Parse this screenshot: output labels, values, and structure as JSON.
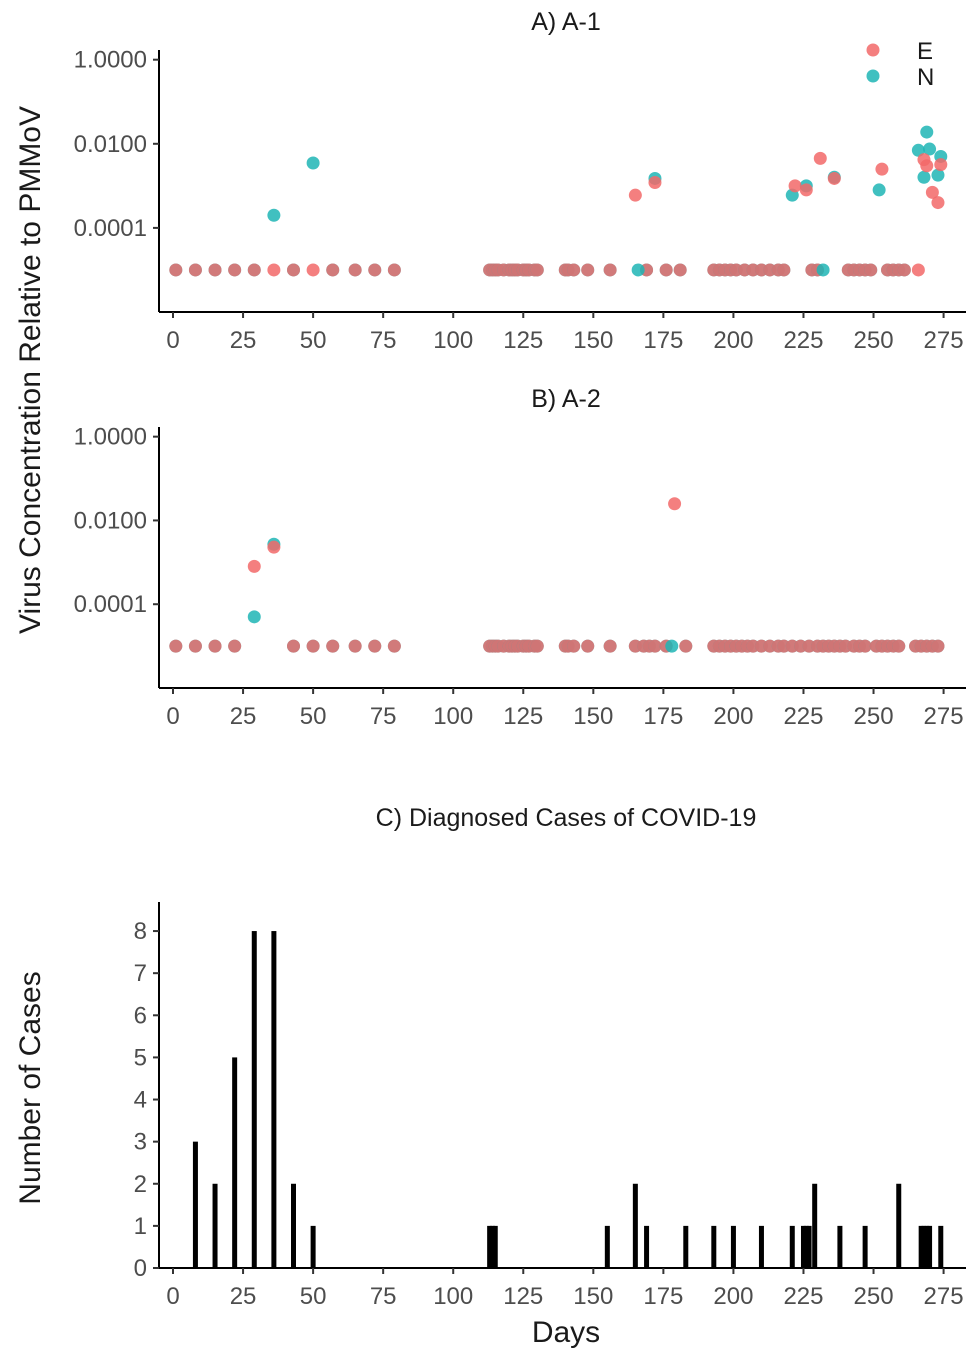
{
  "chart_data": [
    {
      "id": "panel-a",
      "type": "scatter",
      "title": "A) A-1",
      "x_ticks": [
        0,
        25,
        50,
        75,
        100,
        125,
        150,
        175,
        200,
        225,
        250,
        275
      ],
      "y_ticks": [
        "0.0001",
        "0.0100",
        "1.0000"
      ],
      "y_tick_values": [
        0.0001,
        0.01,
        1
      ],
      "y_scale": "log",
      "xlim": [
        -5,
        283
      ],
      "ylim": [
        1e-06,
        1.7
      ],
      "legend": {
        "position": "top-right",
        "entries": [
          "E",
          "N"
        ]
      },
      "series": [
        {
          "name": "N",
          "color": "#1fb5b5",
          "points": [
            [
              36,
              0.0002
            ],
            [
              50,
              0.0035
            ],
            [
              166,
              1e-05
            ],
            [
              172,
              0.0015
            ],
            [
              221,
              0.0006
            ],
            [
              226,
              0.001
            ],
            [
              232,
              1e-05
            ],
            [
              236,
              0.0016
            ],
            [
              252,
              0.0008
            ],
            [
              266,
              0.007
            ],
            [
              268,
              0.0016
            ],
            [
              269,
              0.019
            ],
            [
              270,
              0.0075
            ],
            [
              273,
              0.0018
            ],
            [
              274,
              0.005
            ]
          ]
        },
        {
          "name": "E",
          "color": "#f26868",
          "points": [
            [
              36,
              1e-05
            ],
            [
              50,
              1e-05
            ],
            [
              165,
              0.0006
            ],
            [
              172,
              0.0012
            ],
            [
              222,
              0.001
            ],
            [
              226,
              0.0008
            ],
            [
              231,
              0.0045
            ],
            [
              236,
              0.0015
            ],
            [
              253,
              0.0025
            ],
            [
              268,
              0.0042
            ],
            [
              269,
              0.003
            ],
            [
              271,
              0.0007
            ],
            [
              273,
              0.0004
            ],
            [
              274,
              0.0032
            ],
            [
              266,
              1e-05
            ]
          ]
        }
      ],
      "nondetect_days": [
        1,
        8,
        15,
        22,
        29,
        43,
        57,
        65,
        72,
        79,
        113,
        114,
        115,
        116,
        118,
        120,
        121,
        122,
        123,
        125,
        126,
        127,
        129,
        130,
        140,
        141,
        143,
        148,
        156,
        169,
        176,
        181,
        193,
        195,
        197,
        199,
        201,
        204,
        207,
        210,
        213,
        216,
        218,
        228,
        230,
        241,
        243,
        245,
        247,
        249,
        255,
        257,
        259,
        261
      ]
    },
    {
      "id": "panel-b",
      "type": "scatter",
      "title": "B) A-2",
      "x_ticks": [
        0,
        25,
        50,
        75,
        100,
        125,
        150,
        175,
        200,
        225,
        250,
        275
      ],
      "y_ticks": [
        "0.0001",
        "0.0100",
        "1.0000"
      ],
      "y_tick_values": [
        0.0001,
        0.01,
        1
      ],
      "y_scale": "log",
      "xlim": [
        -5,
        283
      ],
      "ylim": [
        1e-06,
        1.7
      ],
      "series": [
        {
          "name": "N",
          "color": "#1fb5b5",
          "points": [
            [
              29,
              5e-05
            ],
            [
              36,
              0.0027
            ],
            [
              178,
              1e-05
            ]
          ]
        },
        {
          "name": "E",
          "color": "#f26868",
          "points": [
            [
              29,
              0.0008
            ],
            [
              36,
              0.0023
            ],
            [
              179,
              0.025
            ]
          ]
        }
      ],
      "nondetect_days": [
        1,
        8,
        15,
        22,
        43,
        50,
        57,
        65,
        72,
        79,
        113,
        114,
        115,
        116,
        118,
        120,
        121,
        122,
        123,
        125,
        126,
        127,
        129,
        130,
        140,
        141,
        143,
        148,
        156,
        165,
        168,
        170,
        172,
        176,
        183,
        193,
        195,
        197,
        199,
        201,
        203,
        205,
        207,
        210,
        213,
        216,
        218,
        221,
        224,
        227,
        230,
        232,
        234,
        236,
        238,
        240,
        243,
        245,
        247,
        251,
        253,
        255,
        257,
        259,
        265,
        267,
        269,
        271,
        273
      ]
    },
    {
      "id": "panel-c",
      "type": "bar",
      "title": "C) Diagnosed Cases of COVID-19",
      "xlabel": "Days",
      "ylabel": "Number of Cases",
      "x_ticks": [
        0,
        25,
        50,
        75,
        100,
        125,
        150,
        175,
        200,
        225,
        250,
        275
      ],
      "y_ticks": [
        0,
        1,
        2,
        3,
        4,
        5,
        6,
        7,
        8
      ],
      "xlim": [
        -5,
        283
      ],
      "ylim": [
        0,
        8.5
      ],
      "color": "#000000",
      "x": [
        8,
        15,
        22,
        29,
        36,
        43,
        50,
        113,
        114,
        115,
        155,
        165,
        169,
        183,
        193,
        200,
        210,
        221,
        225,
        226,
        227,
        229,
        238,
        247,
        259,
        267,
        268,
        269,
        270,
        274
      ],
      "values": [
        3,
        2,
        5,
        8,
        8,
        2,
        1,
        1,
        1,
        1,
        1,
        2,
        1,
        1,
        1,
        1,
        1,
        1,
        1,
        1,
        1,
        2,
        1,
        1,
        2,
        1,
        1,
        1,
        1,
        1
      ]
    }
  ],
  "shared_ylabel": "Virus Concentration Relative to PMMoV"
}
